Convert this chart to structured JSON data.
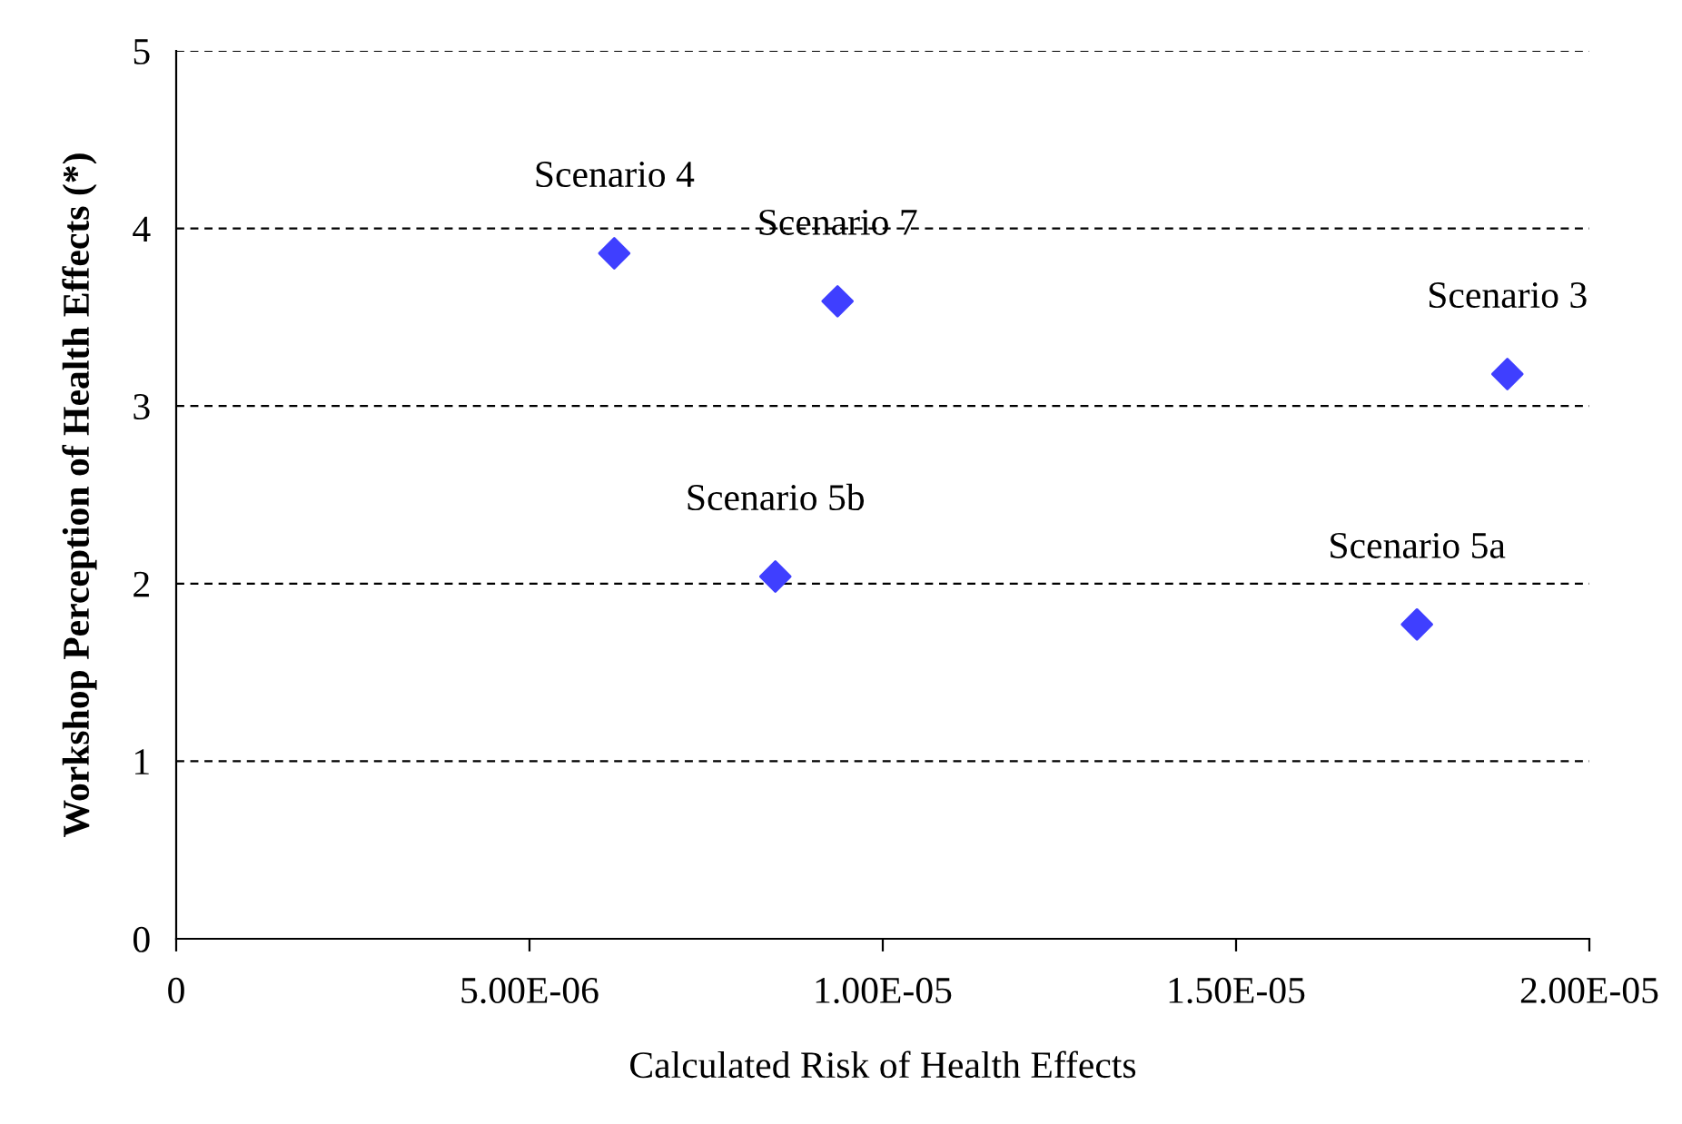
{
  "chart_data": {
    "type": "scatter",
    "xlabel": "Calculated Risk of Health Effects",
    "ylabel": "Workshop Perception of Health Effects (*)",
    "x": [
      6.2e-06,
      9.36e-06,
      1.884e-05,
      8.48e-06,
      1.756e-05
    ],
    "series": [
      {
        "color": "#3f3fff",
        "values": [
          3.86,
          3.59,
          3.18,
          2.04,
          1.77
        ]
      }
    ],
    "annotations": [
      {
        "text": "Scenario 4",
        "x": 6.2e-06,
        "y": 3.86
      },
      {
        "text": "Scenario 7",
        "x": 9.36e-06,
        "y": 3.59
      },
      {
        "text": "Scenario 3",
        "x": 1.884e-05,
        "y": 3.18
      },
      {
        "text": "Scenario 5b",
        "x": 8.48e-06,
        "y": 2.04
      },
      {
        "text": "Scenario 5a",
        "x": 1.756e-05,
        "y": 1.77
      }
    ],
    "xlim": [
      0,
      2e-05
    ],
    "xticks": [
      0,
      {
        "value": 5e-06,
        "label": "5.00E-06"
      },
      {
        "value": 1e-05,
        "label": "1.00E-05"
      },
      {
        "value": 1.5e-05,
        "label": "1.50E-05"
      },
      {
        "value": 2e-05,
        "label": "2.00E-05"
      }
    ],
    "ylim": [
      0,
      5
    ],
    "yticks": [
      0,
      1,
      2,
      3,
      4,
      5
    ],
    "grid": "y",
    "marker": "diamond",
    "legend": false
  }
}
